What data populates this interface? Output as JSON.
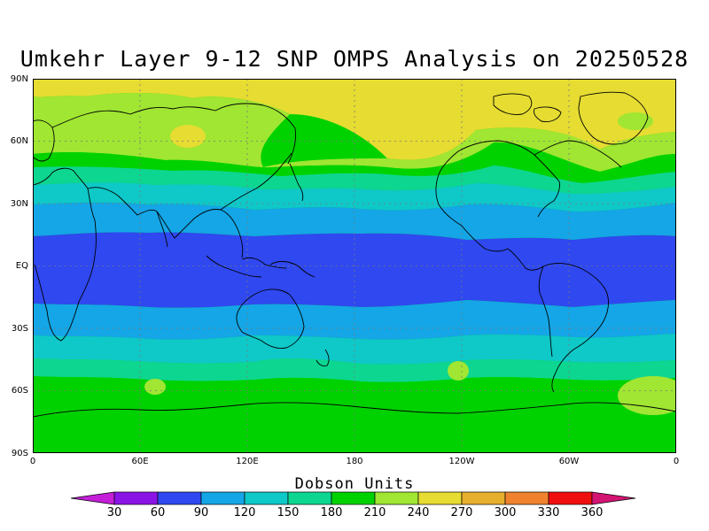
{
  "title": "Umkehr Layer 9-12 SNP OMPS Analysis on 20250528",
  "units_label": "Dobson Units",
  "y_ticks": [
    "90N",
    "60N",
    "30N",
    "EQ",
    "30S",
    "60S",
    "90S"
  ],
  "x_ticks": [
    "0",
    "60E",
    "120E",
    "180",
    "120W",
    "60W",
    "0"
  ],
  "colorbar": {
    "labels": [
      "30",
      "60",
      "90",
      "120",
      "150",
      "180",
      "210",
      "240",
      "270",
      "300",
      "330",
      "360"
    ],
    "colors": [
      "#c41ed8",
      "#8a14e6",
      "#2f48f0",
      "#14a6e6",
      "#0fc8c8",
      "#0dd691",
      "#00d200",
      "#a0e632",
      "#e6dc32",
      "#e6af2d",
      "#f0822d",
      "#f00f0f",
      "#d21473"
    ]
  },
  "chart_data": {
    "type": "heatmap",
    "title": "Umkehr Layer 9-12 SNP OMPS Analysis on 20250528",
    "colorbar_label": "Dobson Units",
    "levels": [
      30,
      60,
      90,
      120,
      150,
      180,
      210,
      240,
      270,
      300,
      330,
      360
    ],
    "x_ticks": [
      "0",
      "60E",
      "120E",
      "180",
      "120W",
      "60W",
      "0"
    ],
    "y_ticks": [
      "90N",
      "60N",
      "30N",
      "EQ",
      "30S",
      "60S",
      "90S"
    ],
    "latitude_band_values": [
      {
        "lat": "90N-70N",
        "value_range": [
          240,
          270
        ]
      },
      {
        "lat": "70N-50N",
        "value_range": [
          210,
          240
        ]
      },
      {
        "lat": "50N-40N",
        "value_range": [
          180,
          210
        ]
      },
      {
        "lat": "40N-30N",
        "value_range": [
          150,
          180
        ]
      },
      {
        "lat": "30N-15N",
        "value_range": [
          120,
          150
        ]
      },
      {
        "lat": "15N-15S",
        "value_range": [
          90,
          120
        ]
      },
      {
        "lat": "15S-30S",
        "value_range": [
          120,
          150
        ]
      },
      {
        "lat": "30S-45S",
        "value_range": [
          150,
          180
        ]
      },
      {
        "lat": "45S-50S",
        "value_range": [
          180,
          210
        ]
      },
      {
        "lat": "50S-90S",
        "value_range": [
          210,
          240
        ]
      }
    ]
  }
}
